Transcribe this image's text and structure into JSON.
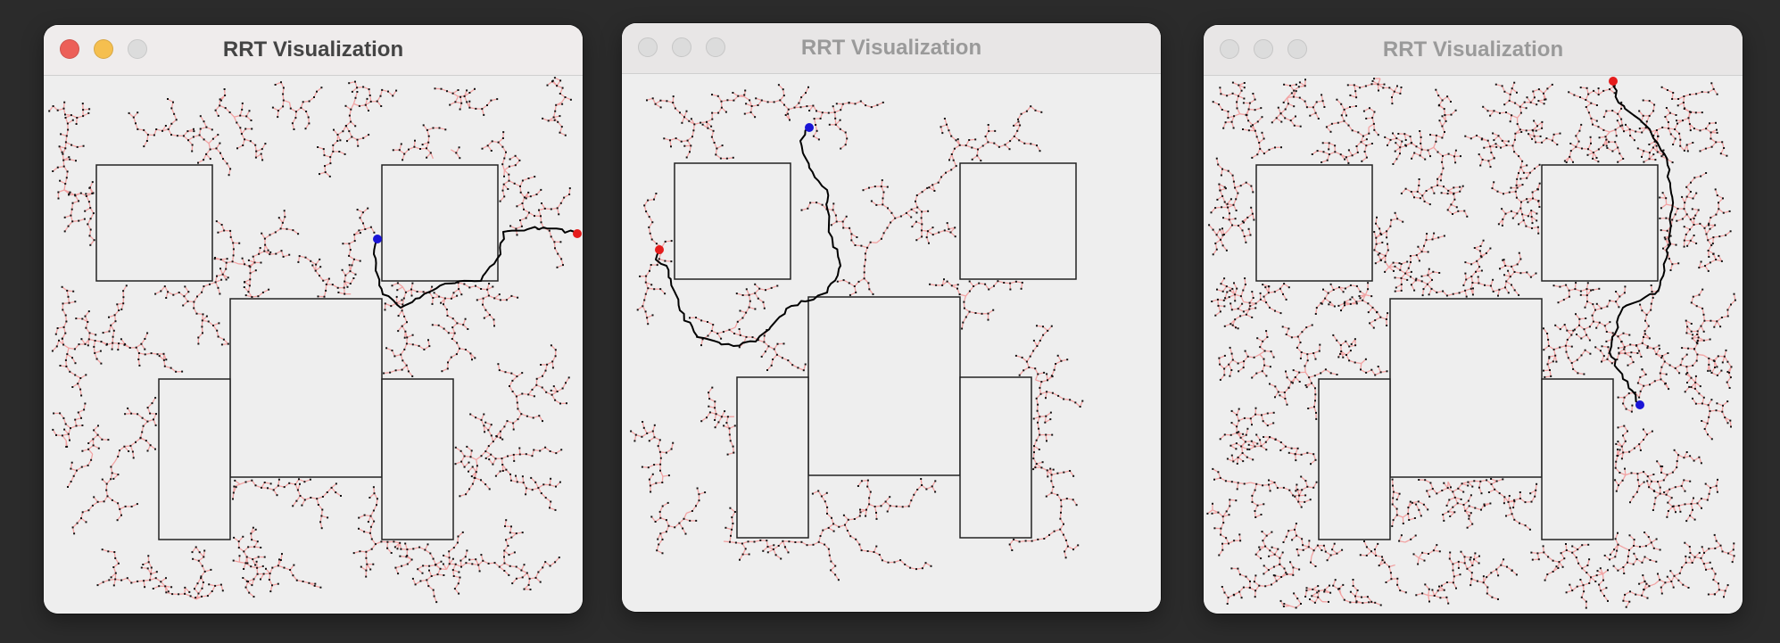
{
  "windows": [
    {
      "title": "RRT Visualization",
      "state": "active",
      "tree_density": "medium",
      "tree_spread": "full",
      "start_marker": "blue",
      "goal_marker": "red"
    },
    {
      "title": "RRT Visualization",
      "state": "inactive",
      "tree_density": "sparse",
      "tree_spread": "partial",
      "start_marker": "blue",
      "goal_marker": "red"
    },
    {
      "title": "RRT Visualization",
      "state": "inactive",
      "tree_density": "dense",
      "tree_spread": "full",
      "start_marker": "blue",
      "goal_marker": "red"
    }
  ],
  "colors": {
    "tree_edge": "#f2a3a3",
    "tree_node": "#111111",
    "path": "#000000",
    "start": "#1a14d6",
    "goal": "#e51c1c",
    "obstacle_fill": "#eeeeee",
    "obstacle_stroke": "#222222"
  },
  "icons": [
    "close-icon",
    "minimize-icon",
    "zoom-icon"
  ]
}
